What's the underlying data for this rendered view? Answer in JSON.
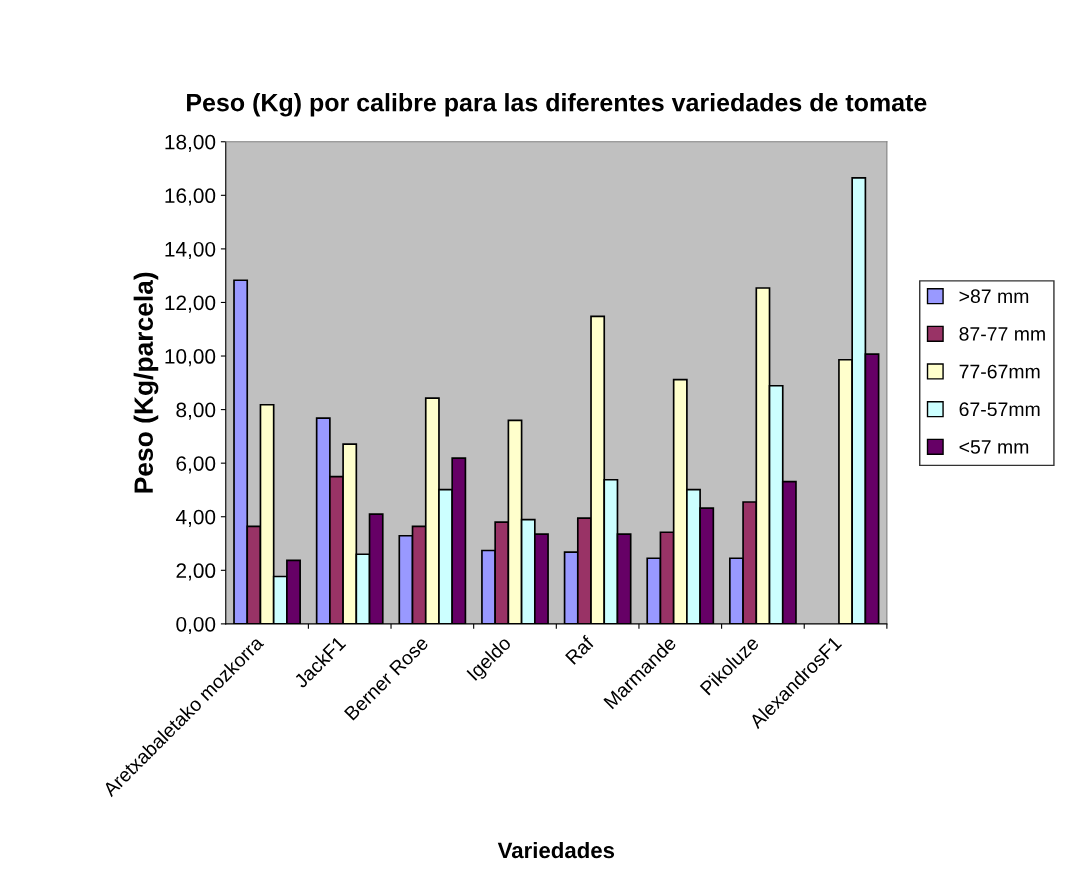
{
  "chart_data": {
    "type": "bar",
    "title": "Peso (Kg) por calibre para las diferentes variedades de tomate",
    "xlabel": "Variedades",
    "ylabel": "Peso (Kg/parcela)",
    "categories": [
      "Aretxabaletako mozkorra",
      "JackF1",
      "Berner Rose",
      "Igeldo",
      "Raf",
      "Marmande",
      "Pikoluze",
      "AlexandrosF1"
    ],
    "series": [
      {
        "name": ">87 mm",
        "color": "#9999ff",
        "values": [
          12.83,
          7.68,
          3.29,
          2.74,
          2.68,
          2.45,
          2.45,
          null
        ]
      },
      {
        "name": "87-77 mm",
        "color": "#993366",
        "values": [
          3.64,
          5.5,
          3.64,
          3.8,
          3.95,
          3.42,
          4.55,
          null
        ]
      },
      {
        "name": "77-67mm",
        "color": "#ffffcc",
        "values": [
          8.18,
          6.71,
          8.43,
          7.6,
          11.48,
          9.12,
          12.54,
          9.86
        ]
      },
      {
        "name": "67-57mm",
        "color": "#ccffff",
        "values": [
          1.77,
          2.6,
          5.01,
          3.89,
          5.38,
          5.01,
          8.89,
          16.65
        ]
      },
      {
        "name": "<57 mm",
        "color": "#660066",
        "values": [
          2.37,
          4.1,
          6.19,
          3.35,
          3.35,
          4.32,
          5.31,
          10.07
        ]
      }
    ],
    "ylim": [
      0,
      18
    ],
    "yticks": [
      {
        "value": 0,
        "label": "0,00"
      },
      {
        "value": 2,
        "label": "2,00"
      },
      {
        "value": 4,
        "label": "4,00"
      },
      {
        "value": 6,
        "label": "6,00"
      },
      {
        "value": 8,
        "label": "8,00"
      },
      {
        "value": 10,
        "label": "10,00"
      },
      {
        "value": 12,
        "label": "12,00"
      },
      {
        "value": 14,
        "label": "14,00"
      },
      {
        "value": 16,
        "label": "16,00"
      },
      {
        "value": 18,
        "label": "18,00"
      }
    ],
    "grid": false,
    "legend": "right"
  }
}
